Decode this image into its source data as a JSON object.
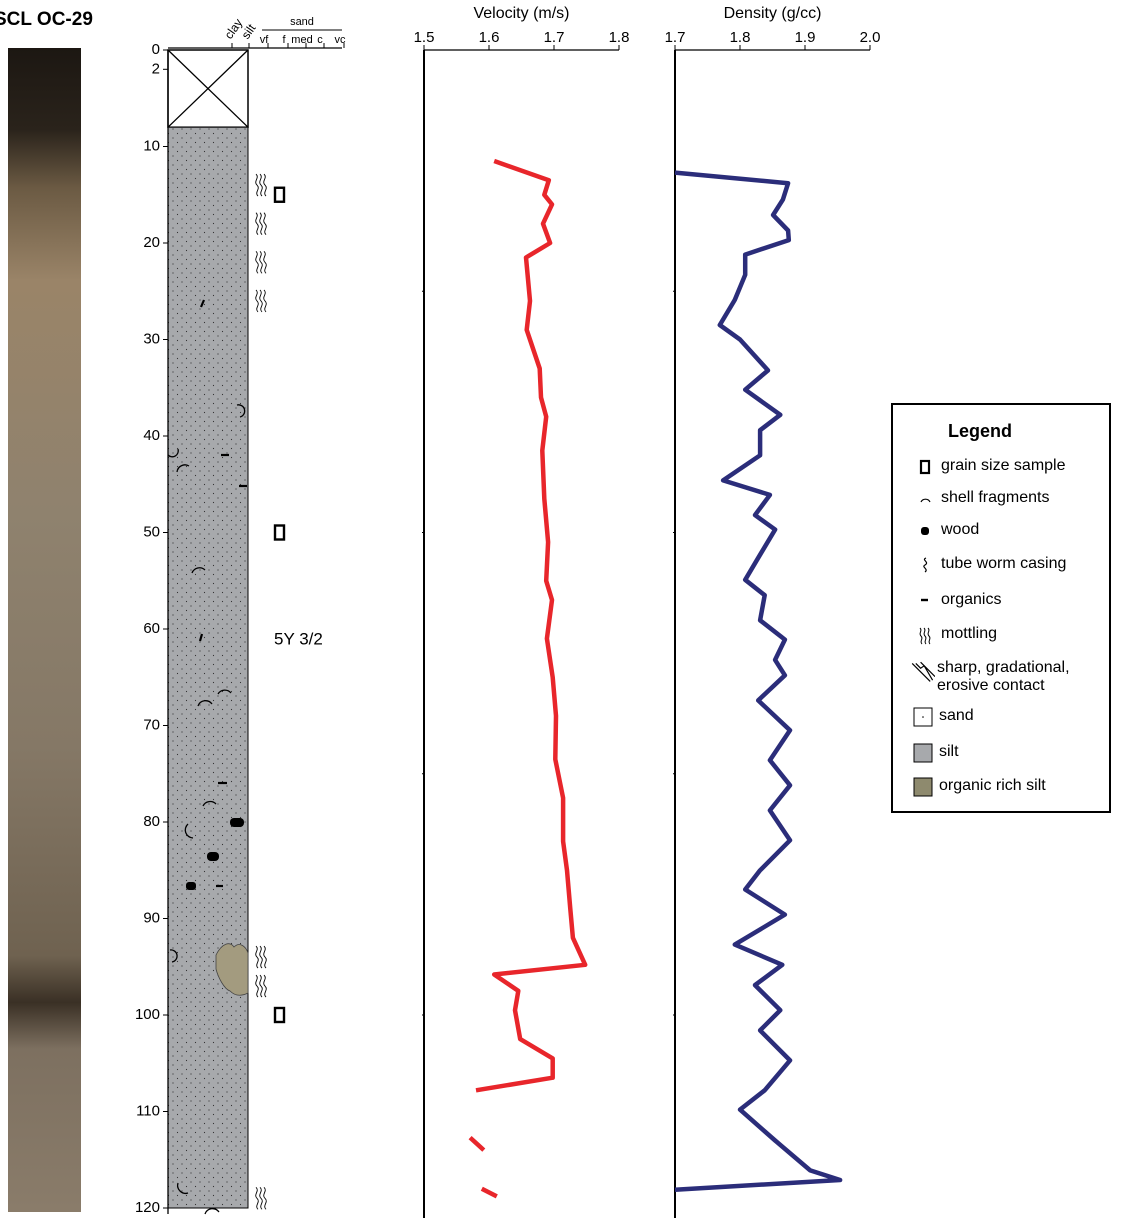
{
  "chart_data": [
    {
      "type": "lithology",
      "title": "SCL OC-29",
      "ylim": [
        0,
        120
      ],
      "yticks": [
        0,
        2,
        10,
        20,
        30,
        40,
        50,
        60,
        70,
        80,
        90,
        100,
        110,
        120
      ],
      "grain_size_labels": [
        "clay",
        "silt",
        "vf",
        "f",
        "med",
        "c",
        "vc",
        "sand"
      ],
      "intervals": [
        {
          "top": 0,
          "bottom": 8,
          "fill": "cross"
        },
        {
          "top": 8,
          "bottom": 120,
          "color": "#a7a9ac"
        }
      ],
      "grain_size_samples": [
        15,
        50,
        100
      ],
      "mottling": [
        14,
        18,
        22,
        26,
        94,
        97,
        119
      ],
      "annotation": "5Y 3/2"
    },
    {
      "type": "line",
      "title": "Velocity (m/s)",
      "xlim": [
        1.5,
        1.8
      ],
      "xticks": [
        1.5,
        1.6,
        1.7,
        1.8
      ],
      "ylim": [
        0,
        120
      ],
      "yticks": [
        25,
        50,
        75,
        100
      ],
      "color": "#e8262b",
      "depth": [
        11.5,
        13.5,
        15,
        16,
        18,
        20,
        21.5,
        26,
        29,
        33,
        36,
        38,
        41.5,
        46.5,
        51,
        55,
        57,
        61,
        65,
        69,
        73.5,
        77.5,
        82,
        85,
        89,
        92,
        94.8,
        95.8,
        97.5,
        99.5,
        102.5,
        104.5,
        106.5,
        107.8,
        110,
        112.7,
        114,
        116,
        118,
        118.8
      ],
      "values": [
        1.608,
        1.692,
        1.685,
        1.697,
        1.683,
        1.694,
        1.657,
        1.663,
        1.658,
        1.678,
        1.68,
        1.688,
        1.682,
        1.685,
        1.691,
        1.688,
        1.697,
        1.689,
        1.698,
        1.703,
        1.702,
        1.714,
        1.714,
        1.72,
        1.725,
        1.729,
        1.748,
        1.608,
        1.645,
        1.64,
        1.648,
        1.698,
        1.698,
        1.58,
        null,
        1.571,
        1.592,
        null,
        1.589,
        1.612
      ]
    },
    {
      "type": "line",
      "title": "Density (g/cc)",
      "xlim": [
        1.7,
        2.0
      ],
      "xticks": [
        1.7,
        1.8,
        1.9,
        {
          "value": 2.0,
          "label": "2.0"
        }
      ],
      "ylim": [
        0,
        120
      ],
      "yticks": [
        25,
        50,
        75,
        100
      ],
      "color": "#2b2d7a",
      "depth": [
        12.7,
        13.8,
        15.5,
        17.1,
        18.7,
        19.7,
        21.2,
        23.3,
        25.9,
        28.5,
        30,
        33.2,
        35.2,
        37.8,
        39.4,
        42,
        44.6,
        46.1,
        48.2,
        49.7,
        52.3,
        54.9,
        56.5,
        59.1,
        61.1,
        63.2,
        64.8,
        67.4,
        70.5,
        73.6,
        76.2,
        78.8,
        81.9,
        85,
        87,
        89.6,
        92.7,
        94.8,
        96.9,
        99.5,
        101.6,
        104.7,
        107.8,
        109.8,
        113,
        116.1,
        117.1,
        118.1
      ],
      "values": [
        1.7,
        1.874,
        1.866,
        1.851,
        1.874,
        1.875,
        1.808,
        1.808,
        1.792,
        1.769,
        1.8,
        1.843,
        1.808,
        1.862,
        1.831,
        1.831,
        1.774,
        1.846,
        1.823,
        1.854,
        1.831,
        1.808,
        1.838,
        1.831,
        1.869,
        1.854,
        1.869,
        1.828,
        1.877,
        1.846,
        1.877,
        1.846,
        1.877,
        1.831,
        1.808,
        1.869,
        1.792,
        1.865,
        1.823,
        1.862,
        1.831,
        1.877,
        1.838,
        1.8,
        1.854,
        1.908,
        1.954,
        1.7
      ]
    }
  ],
  "legend": {
    "title": "Legend",
    "items": [
      "grain size sample",
      "shell fragments",
      "wood",
      "tube worm casing",
      "organics",
      "mottling",
      "sharp, gradational, erosive contact",
      "sand",
      "silt",
      "organic rich silt"
    ]
  }
}
